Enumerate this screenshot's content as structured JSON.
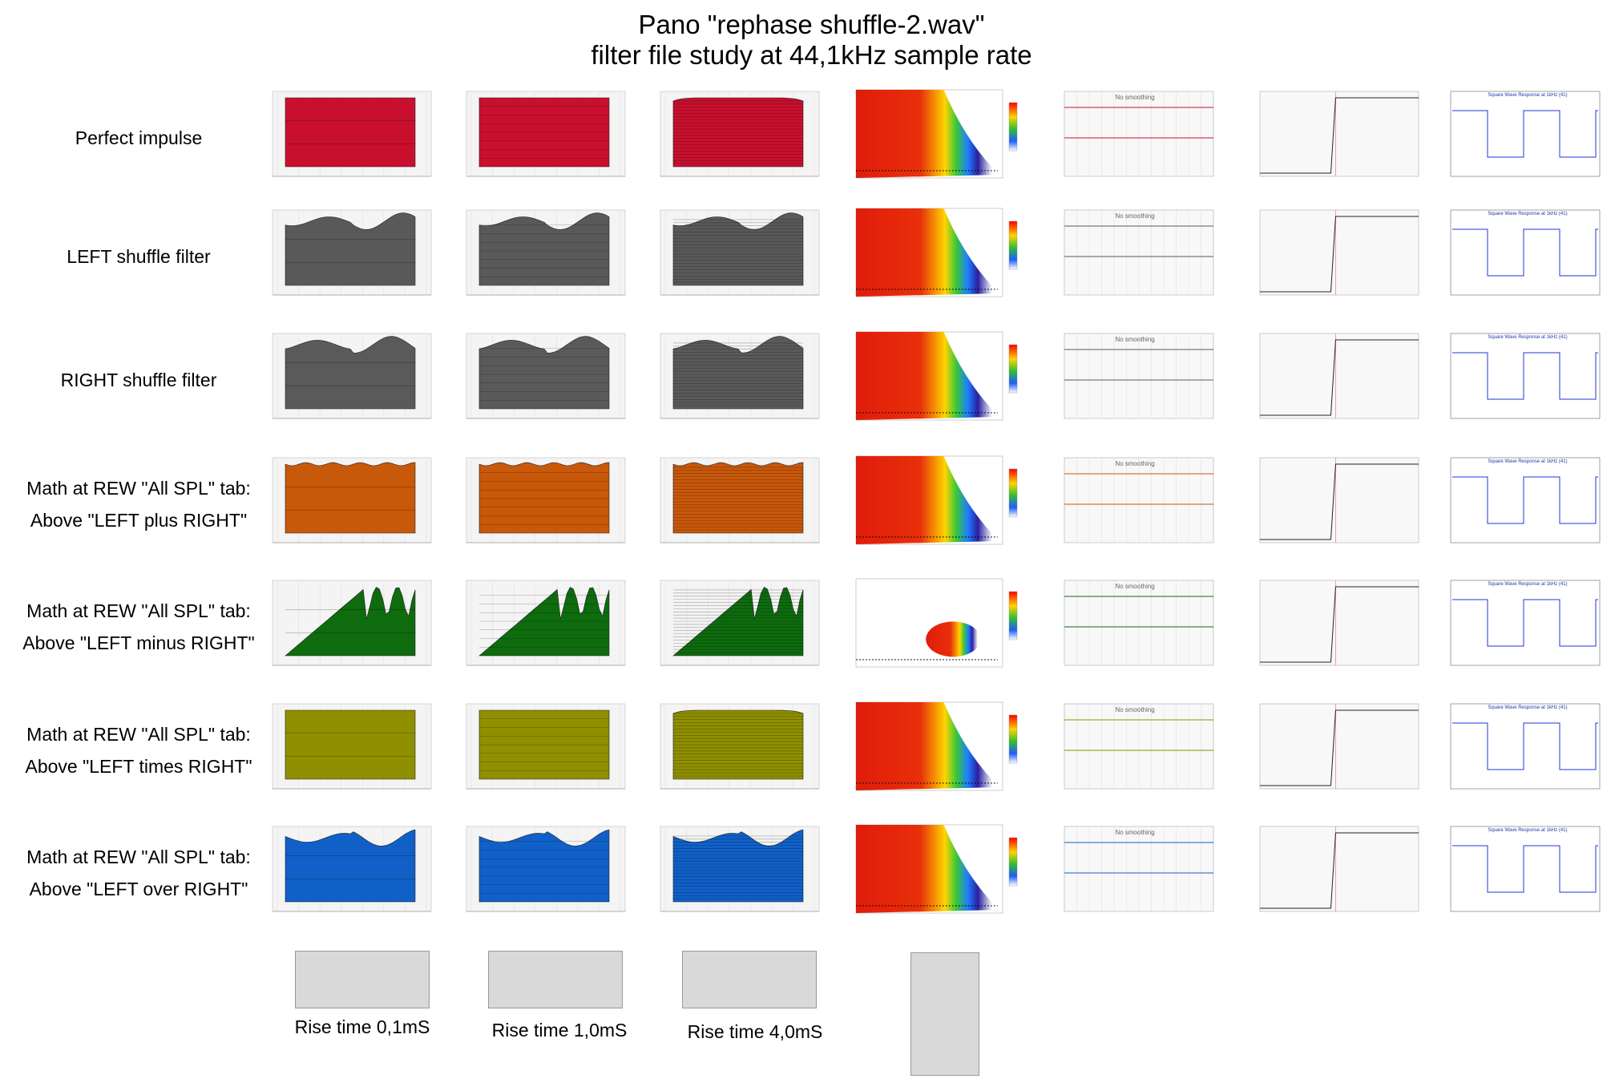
{
  "title_line1": "Pano \"rephase shuffle-2.wav\"",
  "title_line2": "filter file study at 44,1kHz sample rate",
  "rows": [
    {
      "label": [
        "Perfect impulse"
      ],
      "color": "#c8102e",
      "kind": "flat"
    },
    {
      "label": [
        "LEFT shuffle filter"
      ],
      "color": "#595959",
      "kind": "wavy"
    },
    {
      "label": [
        "RIGHT shuffle filter"
      ],
      "color": "#5a5a5a",
      "kind": "wavy"
    },
    {
      "label": [
        "Math at REW \"All SPL\" tab:",
        "Above \"LEFT plus RIGHT\""
      ],
      "color": "#c8580a",
      "kind": "flat-ripple"
    },
    {
      "label": [
        "Math at REW \"All SPL\" tab:",
        "Above \"LEFT minus RIGHT\""
      ],
      "color": "#0e6b0e",
      "kind": "peaks"
    },
    {
      "label": [
        "Math at REW \"All SPL\" tab:",
        "Above \"LEFT times RIGHT\""
      ],
      "color": "#8f8f00",
      "kind": "flat"
    },
    {
      "label": [
        "Math at REW \"All SPL\" tab:",
        "Above \"LEFT over RIGHT\""
      ],
      "color": "#1060c8",
      "kind": "wavy"
    }
  ],
  "no_smoothing": "No smoothing",
  "square_wave_title": "Square Wave Response at 1kHz (41)",
  "rise_times": [
    "Rise time 0,1mS",
    "Rise time 1,0mS",
    "Rise time 4,0mS"
  ]
}
